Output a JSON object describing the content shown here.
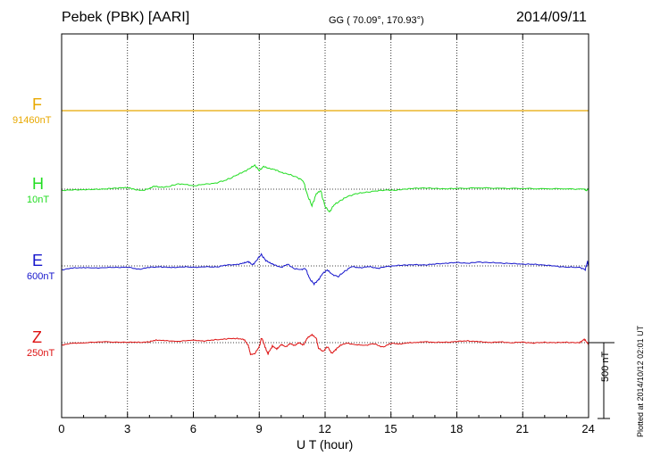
{
  "header": {
    "station": "Pebek (PBK)  [AARI]",
    "coords": "GG ( 70.09°, 170.93°)",
    "date": "2014/09/11"
  },
  "side_note": "Plotted at 2014/10/12 02:01  UT",
  "colors": {
    "F": "#e8a800",
    "H": "#22dd22",
    "E": "#1515cc",
    "Z": "#dd1111"
  },
  "chart_data": {
    "type": "line",
    "xlabel": "U T (hour)",
    "xlim": [
      0,
      24
    ],
    "xticks": [
      "0",
      "3",
      "6",
      "9",
      "12",
      "15",
      "18",
      "21",
      "24"
    ],
    "scale_bar": "500 nT",
    "grid": true,
    "series": [
      {
        "name": "F",
        "baseline": "91460nT",
        "points": [
          [
            0,
            0
          ],
          [
            24,
            0
          ]
        ]
      },
      {
        "name": "H",
        "baseline": "10nT",
        "points": [
          [
            0,
            -8
          ],
          [
            0.5,
            -5
          ],
          [
            1,
            -3
          ],
          [
            1.5,
            -2
          ],
          [
            2,
            2
          ],
          [
            2.4,
            6
          ],
          [
            2.8,
            10
          ],
          [
            3.1,
            8
          ],
          [
            3.4,
            -5
          ],
          [
            3.7,
            -8
          ],
          [
            4,
            4
          ],
          [
            4.2,
            20
          ],
          [
            4.5,
            12
          ],
          [
            4.9,
            18
          ],
          [
            5.3,
            35
          ],
          [
            5.6,
            32
          ],
          [
            6,
            22
          ],
          [
            6.5,
            32
          ],
          [
            7,
            40
          ],
          [
            7.5,
            60
          ],
          [
            8,
            95
          ],
          [
            8.3,
            115
          ],
          [
            8.6,
            140
          ],
          [
            8.8,
            158
          ],
          [
            9,
            122
          ],
          [
            9.2,
            150
          ],
          [
            9.4,
            138
          ],
          [
            9.7,
            130
          ],
          [
            10,
            110
          ],
          [
            10.3,
            100
          ],
          [
            10.7,
            80
          ],
          [
            11,
            55
          ],
          [
            11.2,
            -40
          ],
          [
            11.4,
            -110
          ],
          [
            11.6,
            -30
          ],
          [
            11.8,
            -10
          ],
          [
            12,
            -115
          ],
          [
            12.2,
            -150
          ],
          [
            12.4,
            -105
          ],
          [
            12.7,
            -75
          ],
          [
            13,
            -50
          ],
          [
            13.4,
            -30
          ],
          [
            13.8,
            -22
          ],
          [
            14.3,
            -12
          ],
          [
            14.8,
            -5
          ],
          [
            15.2,
            -8
          ],
          [
            15.6,
            0
          ],
          [
            16,
            5
          ],
          [
            16.5,
            8
          ],
          [
            17,
            5
          ],
          [
            17.5,
            2
          ],
          [
            18,
            5
          ],
          [
            19,
            8
          ],
          [
            20,
            6
          ],
          [
            21,
            4
          ],
          [
            22,
            3
          ],
          [
            23,
            2
          ],
          [
            23.8,
            0
          ],
          [
            23.9,
            -10
          ],
          [
            24,
            5
          ]
        ]
      },
      {
        "name": "E",
        "baseline": "600nT",
        "points": [
          [
            0,
            -25
          ],
          [
            0.5,
            -15
          ],
          [
            1,
            -10
          ],
          [
            1.5,
            -15
          ],
          [
            2,
            -10
          ],
          [
            2.5,
            -10
          ],
          [
            3,
            -8
          ],
          [
            3.5,
            -22
          ],
          [
            4,
            -10
          ],
          [
            4.5,
            -5
          ],
          [
            5,
            -12
          ],
          [
            5.5,
            -5
          ],
          [
            6,
            -10
          ],
          [
            6.5,
            -5
          ],
          [
            7,
            -8
          ],
          [
            7.5,
            5
          ],
          [
            8,
            10
          ],
          [
            8.3,
            18
          ],
          [
            8.5,
            30
          ],
          [
            8.7,
            5
          ],
          [
            8.9,
            42
          ],
          [
            9.1,
            75
          ],
          [
            9.3,
            35
          ],
          [
            9.5,
            20
          ],
          [
            9.7,
            5
          ],
          [
            10,
            -8
          ],
          [
            10.3,
            10
          ],
          [
            10.6,
            -18
          ],
          [
            10.9,
            -25
          ],
          [
            11.1,
            -15
          ],
          [
            11.3,
            -85
          ],
          [
            11.5,
            -120
          ],
          [
            11.7,
            -90
          ],
          [
            11.9,
            -50
          ],
          [
            12.1,
            -25
          ],
          [
            12.3,
            -55
          ],
          [
            12.6,
            -70
          ],
          [
            12.9,
            -35
          ],
          [
            13.2,
            -5
          ],
          [
            13.6,
            -12
          ],
          [
            14,
            -5
          ],
          [
            14.4,
            -15
          ],
          [
            14.8,
            -5
          ],
          [
            15.2,
            2
          ],
          [
            15.6,
            5
          ],
          [
            16,
            8
          ],
          [
            16.5,
            6
          ],
          [
            17,
            12
          ],
          [
            17.5,
            18
          ],
          [
            18,
            22
          ],
          [
            18.5,
            18
          ],
          [
            19,
            25
          ],
          [
            19.5,
            22
          ],
          [
            20,
            18
          ],
          [
            20.5,
            16
          ],
          [
            21,
            12
          ],
          [
            21.5,
            10
          ],
          [
            22,
            6
          ],
          [
            22.5,
            -2
          ],
          [
            23,
            -8
          ],
          [
            23.6,
            -10
          ],
          [
            23.85,
            -25
          ],
          [
            23.95,
            30
          ],
          [
            24,
            -5
          ]
        ]
      },
      {
        "name": "Z",
        "baseline": "250nT",
        "points": [
          [
            0,
            -15
          ],
          [
            0.5,
            -5
          ],
          [
            1,
            0
          ],
          [
            2,
            5
          ],
          [
            3,
            3
          ],
          [
            3.5,
            2
          ],
          [
            4,
            5
          ],
          [
            4.3,
            18
          ],
          [
            4.7,
            12
          ],
          [
            5.3,
            10
          ],
          [
            6,
            15
          ],
          [
            6.5,
            12
          ],
          [
            7,
            18
          ],
          [
            7.5,
            25
          ],
          [
            8,
            28
          ],
          [
            8.3,
            20
          ],
          [
            8.5,
            -15
          ],
          [
            8.6,
            -80
          ],
          [
            8.8,
            -70
          ],
          [
            9,
            -30
          ],
          [
            9.1,
            35
          ],
          [
            9.3,
            -40
          ],
          [
            9.4,
            -75
          ],
          [
            9.6,
            -20
          ],
          [
            9.8,
            -45
          ],
          [
            10,
            -10
          ],
          [
            10.2,
            -30
          ],
          [
            10.4,
            -5
          ],
          [
            10.6,
            -20
          ],
          [
            10.8,
            0
          ],
          [
            11.0,
            -15
          ],
          [
            11.2,
            30
          ],
          [
            11.4,
            55
          ],
          [
            11.6,
            25
          ],
          [
            11.7,
            -35
          ],
          [
            11.9,
            -60
          ],
          [
            12.1,
            -25
          ],
          [
            12.3,
            -70
          ],
          [
            12.5,
            -45
          ],
          [
            12.7,
            -15
          ],
          [
            13,
            -5
          ],
          [
            13.4,
            -12
          ],
          [
            13.8,
            -20
          ],
          [
            14.2,
            -5
          ],
          [
            14.6,
            -30
          ],
          [
            15,
            -5
          ],
          [
            15.4,
            -8
          ],
          [
            15.8,
            -2
          ],
          [
            16.2,
            3
          ],
          [
            16.6,
            5
          ],
          [
            17,
            3
          ],
          [
            17.5,
            2
          ],
          [
            18,
            8
          ],
          [
            18.5,
            12
          ],
          [
            19,
            6
          ],
          [
            19.5,
            2
          ],
          [
            20,
            4
          ],
          [
            20.5,
            0
          ],
          [
            21,
            3
          ],
          [
            21.5,
            -2
          ],
          [
            22,
            2
          ],
          [
            22.5,
            0
          ],
          [
            23,
            3
          ],
          [
            23.6,
            -2
          ],
          [
            23.8,
            25
          ],
          [
            23.95,
            -5
          ],
          [
            24,
            0
          ]
        ]
      }
    ]
  }
}
